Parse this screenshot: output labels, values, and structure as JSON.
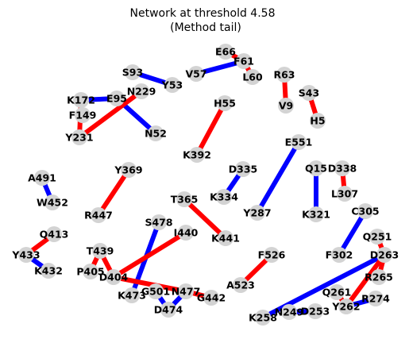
{
  "title": {
    "line1": "Network at threshold 4.58",
    "line2": "(Method tail)"
  },
  "colors": {
    "positive_edge": "#ff0000",
    "negative_edge": "#0000ff",
    "node": "#d3d3d3"
  },
  "nodes": [
    "E66",
    "F61",
    "V57",
    "L60",
    "R63",
    "V9",
    "S93",
    "Y53",
    "N229",
    "E95",
    "K172",
    "F149",
    "Y231",
    "N52",
    "H55",
    "K392",
    "S43",
    "H5",
    "E551",
    "Y287",
    "D335",
    "K334",
    "Q15",
    "K321",
    "D338",
    "L307",
    "A491",
    "W452",
    "Y369",
    "R447",
    "T365",
    "K441",
    "C305",
    "F302",
    "S478",
    "K473",
    "I440",
    "Q413",
    "Y433",
    "K432",
    "T439",
    "P405",
    "D404",
    "G501",
    "N477",
    "D474",
    "G442",
    "F526",
    "A523",
    "Q251",
    "D263",
    "R265",
    "Q261",
    "Y262",
    "R274",
    "K258",
    "N249",
    "D253"
  ],
  "edges": [
    {
      "source": "E66",
      "target": "F61",
      "color": "red"
    },
    {
      "source": "V57",
      "target": "F61",
      "color": "blue"
    },
    {
      "source": "F61",
      "target": "L60",
      "color": "red"
    },
    {
      "source": "R63",
      "target": "V9",
      "color": "red"
    },
    {
      "source": "S93",
      "target": "Y53",
      "color": "blue"
    },
    {
      "source": "K172",
      "target": "E95",
      "color": "blue"
    },
    {
      "source": "E95",
      "target": "N52",
      "color": "blue"
    },
    {
      "source": "N229",
      "target": "Y231",
      "color": "red"
    },
    {
      "source": "K172",
      "target": "Y231",
      "color": "red"
    },
    {
      "source": "H55",
      "target": "K392",
      "color": "red"
    },
    {
      "source": "S43",
      "target": "H5",
      "color": "red"
    },
    {
      "source": "E551",
      "target": "Y287",
      "color": "blue"
    },
    {
      "source": "D335",
      "target": "K334",
      "color": "blue"
    },
    {
      "source": "Q15",
      "target": "K321",
      "color": "blue"
    },
    {
      "source": "D338",
      "target": "L307",
      "color": "red"
    },
    {
      "source": "A491",
      "target": "W452",
      "color": "blue"
    },
    {
      "source": "Y369",
      "target": "R447",
      "color": "red"
    },
    {
      "source": "T365",
      "target": "K441",
      "color": "red"
    },
    {
      "source": "C305",
      "target": "F302",
      "color": "blue"
    },
    {
      "source": "S478",
      "target": "K473",
      "color": "blue"
    },
    {
      "source": "I440",
      "target": "D404",
      "color": "red"
    },
    {
      "source": "Q413",
      "target": "Y433",
      "color": "red"
    },
    {
      "source": "Y433",
      "target": "K432",
      "color": "blue"
    },
    {
      "source": "T439",
      "target": "P405",
      "color": "red"
    },
    {
      "source": "T439",
      "target": "D404",
      "color": "red"
    },
    {
      "source": "D404",
      "target": "N477",
      "color": "red"
    },
    {
      "source": "G501",
      "target": "D474",
      "color": "blue"
    },
    {
      "source": "N477",
      "target": "D474",
      "color": "blue"
    },
    {
      "source": "N477",
      "target": "G442",
      "color": "red"
    },
    {
      "source": "F526",
      "target": "A523",
      "color": "red"
    },
    {
      "source": "Q251",
      "target": "D263",
      "color": "red"
    },
    {
      "source": "D263",
      "target": "K258",
      "color": "blue"
    },
    {
      "source": "D263",
      "target": "Y262",
      "color": "red"
    },
    {
      "source": "R265",
      "target": "D263",
      "color": "red"
    },
    {
      "source": "Y262",
      "target": "R274",
      "color": "blue"
    },
    {
      "source": "Q261",
      "target": "Y262",
      "color": "red"
    },
    {
      "source": "N249",
      "target": "D253",
      "color": "blue"
    }
  ]
}
